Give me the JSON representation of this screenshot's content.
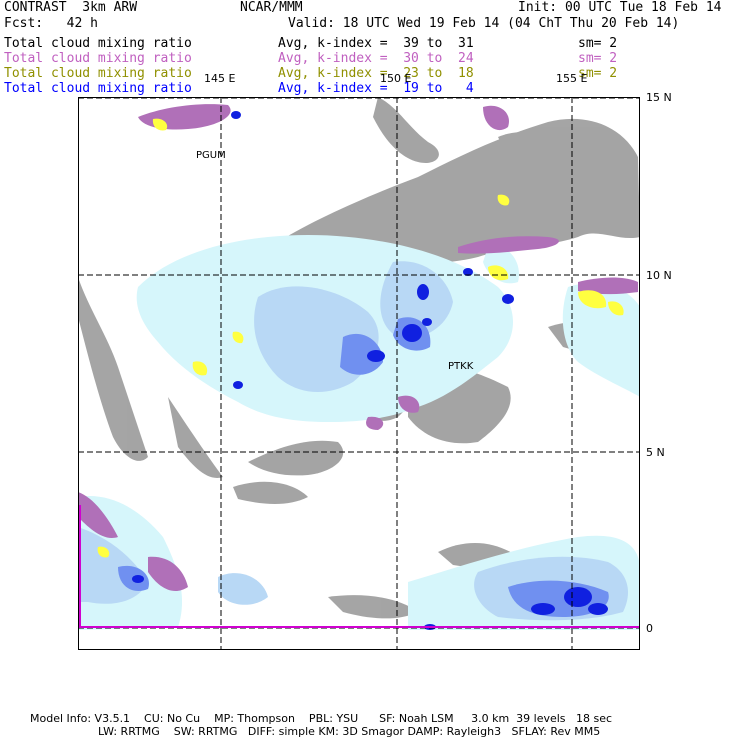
{
  "header": {
    "product": "CONTRAST  3km ARW",
    "org": "NCAR/MMM",
    "init": "Init: 00 UTC Tue 18 Feb 14",
    "fcst": "Fcst:   42 h",
    "valid": "Valid: 18 UTC Wed 19 Feb 14 (04 ChT Thu 20 Feb 14)"
  },
  "fields": [
    {
      "name": "Total cloud mixing ratio",
      "avg": "Avg, k-index =  39 to  31",
      "sm": "sm= 2",
      "color": "#000000"
    },
    {
      "name": "Total cloud mixing ratio",
      "avg": "Avg, k-index =  30 to  24",
      "sm": "sm= 2",
      "color": "#c060c0"
    },
    {
      "name": "Total cloud mixing ratio",
      "avg": "Avg, k-index =  23 to  18",
      "sm": "sm= 2",
      "color": "#909000"
    },
    {
      "name": "Total cloud mixing ratio",
      "avg": "Avg, k-index =  19 to   4",
      "sm": "",
      "color": "#0000ff"
    }
  ],
  "map": {
    "lon_labels": [
      "145 E",
      "150 E",
      "155 E"
    ],
    "lat_labels": [
      "15 N",
      "10 N",
      "5 N",
      "0"
    ],
    "stations": [
      "PGUM",
      "PTKK"
    ],
    "colors": {
      "land_gray": "#a0a0a0",
      "light_cyan": "#d6f6fb",
      "light_blue": "#b8d8f5",
      "mid_blue": "#7090f0",
      "dark_blue": "#1020e0",
      "purple": "#b070b8",
      "yellow": "#ffff40",
      "magenta_line": "#d000d0"
    }
  },
  "footer": {
    "line1": "Model Info: V3.5.1    CU: No Cu    MP: Thompson    PBL: YSU      SF: Noah LSM     3.0 km  39 levels   18 sec",
    "line2": "LW: RRTMG    SW: RRTMG   DIFF: simple KM: 3D Smagor DAMP: Rayleigh3   SFLAY: Rev MM5"
  }
}
